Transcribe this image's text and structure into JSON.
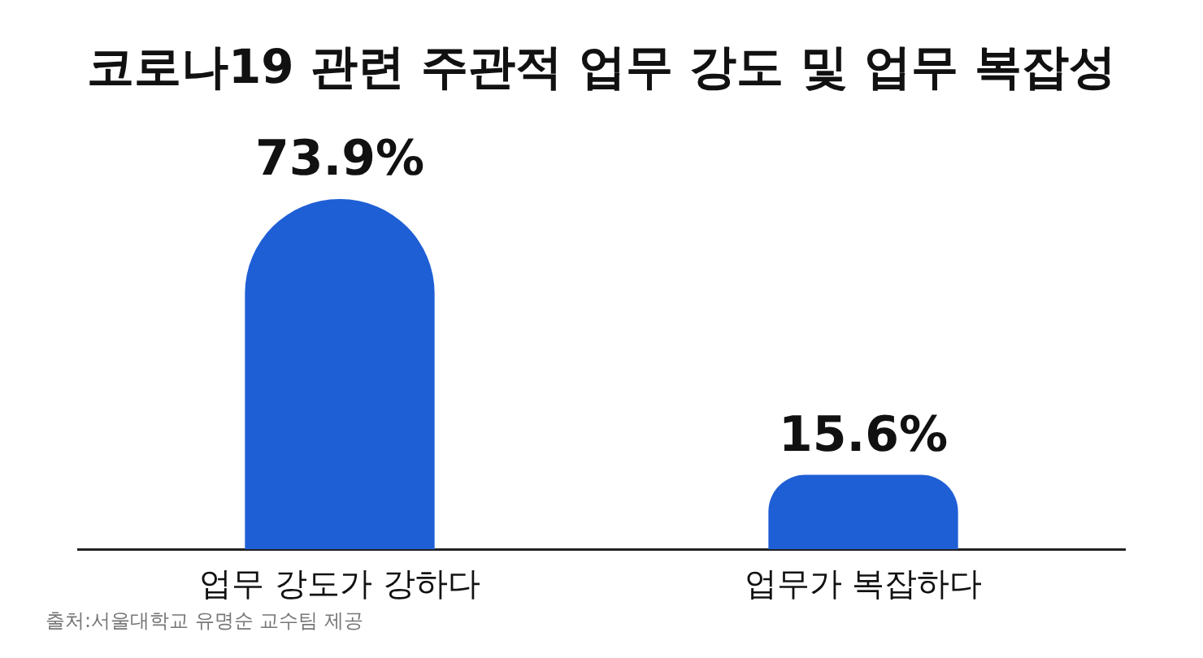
{
  "chart_data": {
    "type": "bar",
    "title": "코로나19 관련 주관적 업무 강도 및 업무 복잡성",
    "categories": [
      "업무 강도가 강하다",
      "업무가 복잡하다"
    ],
    "values": [
      73.9,
      15.6
    ],
    "value_labels": [
      "73.9%",
      "15.6%"
    ],
    "color": "#1f5fd6",
    "annotations": [
      "출처:서울대학교 유명순 교수팀 제공"
    ]
  }
}
